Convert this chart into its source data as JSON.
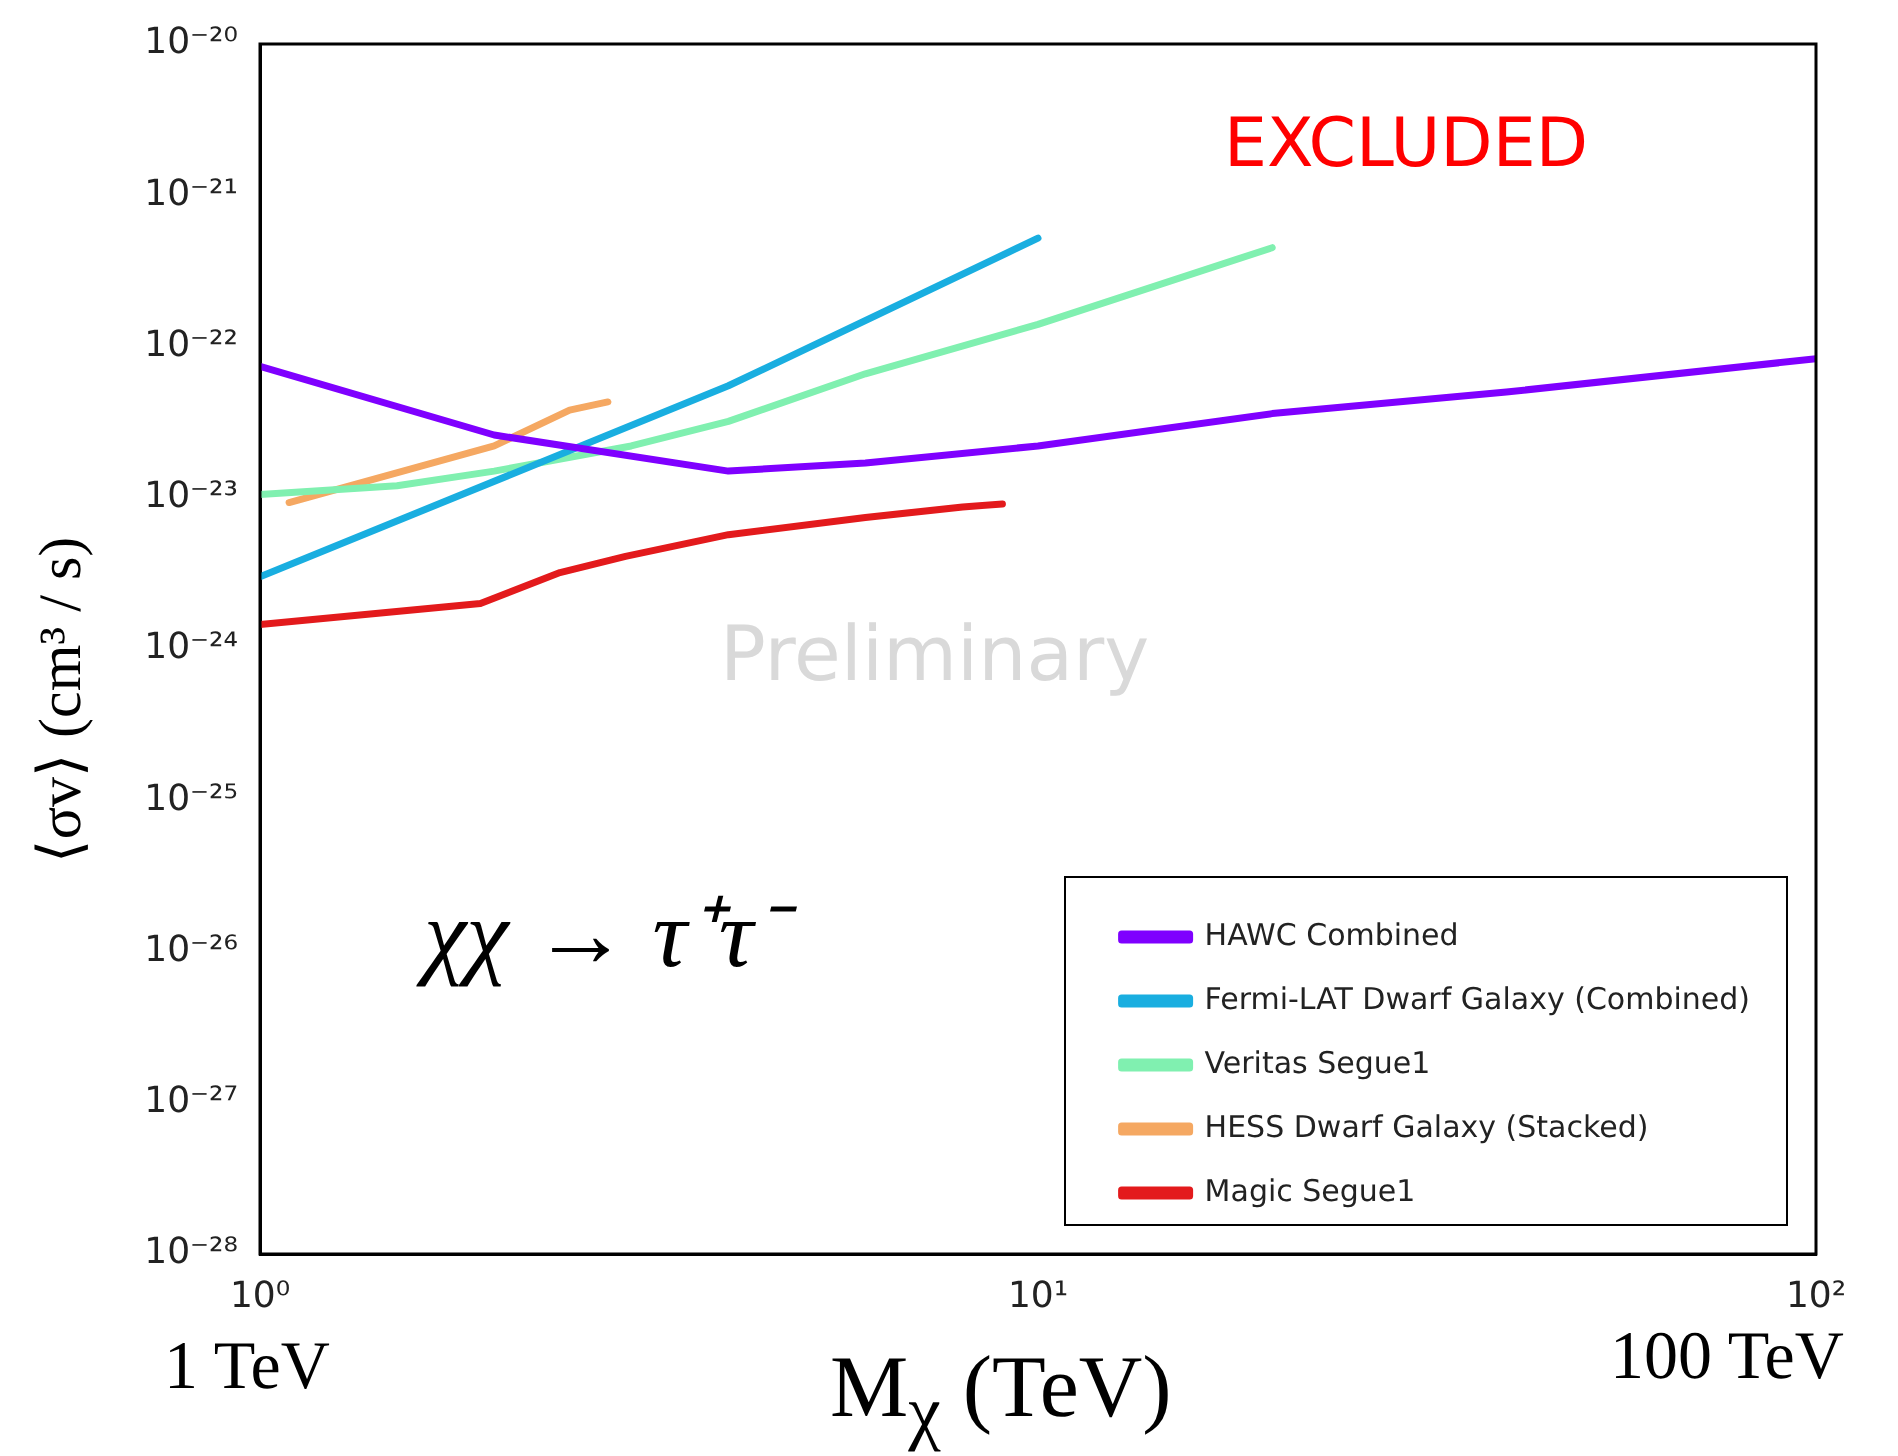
{
  "chart_data": {
    "type": "line",
    "xlabel": "M$_{χ}$ (TeV)",
    "ylabel": "⟨σv⟩ (cm³ / s)",
    "log": "xy",
    "grid": false,
    "legend": "bottom right",
    "marker": "none",
    "line_style": "solid",
    "xlim": [
      1,
      100
    ],
    "ylim": [
      1e-28,
      1e-20
    ],
    "xticks": [
      {
        "value": 1,
        "label": "10⁰"
      },
      {
        "value": 10,
        "label": "10¹"
      },
      {
        "value": 100,
        "label": "10²"
      }
    ],
    "yticks": [
      {
        "value": 1e-28,
        "label": "10⁻²⁸"
      },
      {
        "value": 1e-27,
        "label": "10⁻²⁷"
      },
      {
        "value": 1e-26,
        "label": "10⁻²⁶"
      },
      {
        "value": 1e-25,
        "label": "10⁻²⁵"
      },
      {
        "value": 1e-24,
        "label": "10⁻²⁴"
      },
      {
        "value": 1e-23,
        "label": "10⁻²³"
      },
      {
        "value": 1e-22,
        "label": "10⁻²²"
      },
      {
        "value": 1e-21,
        "label": "10⁻²¹"
      },
      {
        "value": 1e-20,
        "label": "10⁻²⁰"
      }
    ],
    "annotations": [
      "EXCLUDED",
      "Preliminary",
      "χχ → τ⁺τ⁻",
      "1 TeV",
      "100 TeV"
    ],
    "series": [
      {
        "name": "HAWC Combined",
        "color": "#7f00ff",
        "x": [
          1,
          2,
          4,
          6,
          10,
          20,
          40,
          100
        ],
        "values": [
          7.4e-23,
          2.6e-23,
          1.5e-23,
          1.7e-23,
          2.2e-23,
          3.6e-23,
          5e-23,
          8.3e-23
        ]
      },
      {
        "name": "Fermi-LAT Dwarf Galaxy (Combined)",
        "color": "#19aee0",
        "x": [
          1,
          4,
          10
        ],
        "values": [
          3e-24,
          5.5e-23,
          5.2e-22
        ]
      },
      {
        "name": "Veritas Segue1",
        "color": "#80f0b0",
        "x": [
          1,
          1.5,
          2,
          3,
          4,
          6,
          10,
          20
        ],
        "values": [
          1.05e-23,
          1.2e-23,
          1.5e-23,
          2.2e-23,
          3.2e-23,
          6.6e-23,
          1.4e-22,
          4.5e-22
        ]
      },
      {
        "name": "HESS Dwarf Galaxy (Stacked)",
        "color": "#f5a862",
        "x": [
          1.09,
          2,
          2.5,
          2.8
        ],
        "values": [
          9.3e-24,
          2.2e-23,
          3.8e-23,
          4.3e-23
        ]
      },
      {
        "name": "Magic Segue1",
        "color": "#e31a1c",
        "x": [
          1,
          1.92,
          2.43,
          2.95,
          4,
          6,
          8,
          9
        ],
        "values": [
          1.45e-24,
          2e-24,
          3.2e-24,
          4.1e-24,
          5.7e-24,
          7.4e-24,
          8.7e-24,
          9.1e-24
        ]
      }
    ]
  }
}
